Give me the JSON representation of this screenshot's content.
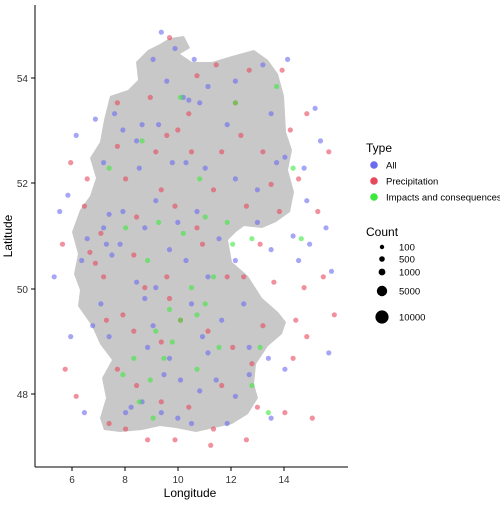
{
  "chart_data": {
    "type": "scatter",
    "title": "",
    "xlabel": "Longitude",
    "ylabel": "Latitude",
    "xlim": [
      4.3,
      15.7
    ],
    "ylim": [
      46.8,
      55.3
    ],
    "x_ticks": [
      "6",
      "8",
      "10",
      "12",
      "14"
    ],
    "y_ticks": [
      "48",
      "50",
      "52",
      "54"
    ],
    "grid": false,
    "background_map": "Germany outline (grey)",
    "map_fill": "#c8c8c8",
    "legend_placement": "right",
    "legend_type": {
      "title": "Type",
      "entries": [
        {
          "label": "All",
          "color": "#6b6bf0"
        },
        {
          "label": "Precipitation",
          "color": "#e8485c"
        },
        {
          "label": "Impacts and consequences",
          "color": "#3de83d"
        }
      ]
    },
    "legend_size": {
      "title": "Count",
      "entries": [
        {
          "label": "100",
          "value": 100
        },
        {
          "label": "500",
          "value": 500
        },
        {
          "label": "1000",
          "value": 1000
        },
        {
          "label": "5000",
          "value": 5000
        },
        {
          "label": "10000",
          "value": 10000
        }
      ]
    },
    "series": [
      {
        "name": "All",
        "color": "#6b6bf0",
        "points": [
          [
            8.9,
            54.8
          ],
          [
            9.4,
            54.5
          ],
          [
            8.6,
            54.3
          ],
          [
            10.1,
            54.3
          ],
          [
            9.1,
            53.9
          ],
          [
            10.6,
            53.8
          ],
          [
            9.9,
            53.55
          ],
          [
            10.3,
            53.5
          ],
          [
            8.8,
            53.1
          ],
          [
            9.7,
            53.6
          ],
          [
            8.2,
            53.1
          ],
          [
            7.2,
            53.3
          ],
          [
            7.5,
            53.0
          ],
          [
            8.0,
            52.8
          ],
          [
            9.3,
            52.4
          ],
          [
            9.8,
            52.4
          ],
          [
            10.5,
            52.3
          ],
          [
            11.6,
            52.1
          ],
          [
            12.4,
            51.9
          ],
          [
            13.4,
            52.5
          ],
          [
            13.1,
            52.4
          ],
          [
            14.1,
            52.3
          ],
          [
            13.7,
            51.05
          ],
          [
            12.4,
            51.3
          ],
          [
            11.0,
            51.0
          ],
          [
            10.2,
            51.5
          ],
          [
            9.5,
            51.3
          ],
          [
            8.7,
            51.7
          ],
          [
            7.5,
            51.5
          ],
          [
            7.0,
            51.45
          ],
          [
            6.8,
            51.2
          ],
          [
            6.2,
            51.0
          ],
          [
            6.9,
            50.9
          ],
          [
            7.1,
            50.7
          ],
          [
            8.0,
            50.2
          ],
          [
            8.7,
            50.1
          ],
          [
            8.3,
            49.9
          ],
          [
            8.6,
            49.4
          ],
          [
            8.4,
            49.0
          ],
          [
            9.2,
            48.8
          ],
          [
            9.0,
            48.5
          ],
          [
            8.2,
            48.0
          ],
          [
            7.8,
            47.9
          ],
          [
            9.5,
            47.7
          ],
          [
            10.0,
            47.6
          ],
          [
            10.9,
            48.4
          ],
          [
            11.6,
            48.1
          ],
          [
            12.1,
            48.5
          ],
          [
            12.8,
            48.8
          ],
          [
            13.4,
            48.6
          ],
          [
            11.1,
            49.5
          ],
          [
            11.9,
            49.8
          ],
          [
            10.0,
            49.8
          ],
          [
            12.1,
            49.0
          ],
          [
            6.4,
            49.4
          ],
          [
            7.0,
            49.2
          ],
          [
            6.7,
            49.8
          ],
          [
            5.2,
            51.5
          ],
          [
            5.5,
            51.8
          ],
          [
            5.8,
            52.9
          ],
          [
            6.5,
            53.2
          ],
          [
            14.3,
            50.9
          ],
          [
            14.9,
            51.2
          ],
          [
            13.5,
            54.3
          ],
          [
            12.6,
            54.2
          ],
          [
            11.6,
            53.9
          ],
          [
            14.5,
            53.4
          ],
          [
            6.8,
            52.4
          ],
          [
            8.3,
            51.2
          ],
          [
            9.8,
            50.6
          ],
          [
            10.6,
            50.3
          ],
          [
            11.6,
            50.6
          ],
          [
            12.9,
            50.8
          ],
          [
            13.9,
            50.6
          ],
          [
            12.9,
            53.3
          ],
          [
            11.3,
            53.1
          ],
          [
            8.1,
            52.3
          ],
          [
            9.2,
            50.8
          ],
          [
            10.4,
            49.2
          ],
          [
            10.6,
            48.9
          ],
          [
            7.6,
            47.8
          ],
          [
            8.9,
            47.8
          ],
          [
            11.3,
            47.6
          ],
          [
            12.9,
            47.7
          ],
          [
            7.4,
            50.9
          ],
          [
            6.0,
            50.6
          ],
          [
            9.6,
            48.4
          ],
          [
            10.3,
            48.2
          ],
          [
            14.7,
            52.8
          ],
          [
            14.2,
            51.7
          ],
          [
            5.0,
            50.3
          ],
          [
            6.1,
            47.8
          ],
          [
            15.0,
            48.9
          ],
          [
            15.1,
            50.4
          ],
          [
            5.6,
            49.2
          ]
        ]
      },
      {
        "name": "Precipitation",
        "color": "#e8485c",
        "points": [
          [
            9.2,
            54.7
          ],
          [
            10.2,
            54.0
          ],
          [
            12.1,
            54.1
          ],
          [
            13.3,
            54.1
          ],
          [
            8.5,
            53.6
          ],
          [
            9.9,
            53.3
          ],
          [
            11.6,
            53.5
          ],
          [
            14.2,
            53.3
          ],
          [
            7.3,
            52.7
          ],
          [
            8.7,
            52.6
          ],
          [
            10.0,
            52.6
          ],
          [
            11.1,
            52.6
          ],
          [
            12.6,
            52.6
          ],
          [
            13.9,
            52.1
          ],
          [
            7.6,
            52.1
          ],
          [
            8.9,
            51.9
          ],
          [
            10.8,
            51.9
          ],
          [
            12.0,
            51.6
          ],
          [
            13.2,
            51.5
          ],
          [
            14.6,
            51.5
          ],
          [
            6.7,
            51.1
          ],
          [
            6.3,
            50.75
          ],
          [
            6.5,
            50.55
          ],
          [
            7.9,
            50.7
          ],
          [
            9.1,
            50.3
          ],
          [
            10.4,
            50.9
          ],
          [
            11.9,
            50.3
          ],
          [
            13.0,
            50.2
          ],
          [
            14.1,
            50.1
          ],
          [
            7.5,
            49.6
          ],
          [
            8.9,
            49.1
          ],
          [
            10.6,
            49.3
          ],
          [
            12.6,
            49.4
          ],
          [
            13.7,
            48.8
          ],
          [
            11.1,
            48.3
          ],
          [
            12.4,
            47.9
          ],
          [
            9.9,
            47.9
          ],
          [
            8.0,
            48.3
          ],
          [
            7.3,
            48.6
          ],
          [
            7.6,
            47.5
          ],
          [
            8.4,
            47.3
          ],
          [
            9.4,
            47.3
          ],
          [
            10.8,
            47.5
          ],
          [
            12.0,
            47.3
          ],
          [
            5.8,
            48.1
          ],
          [
            5.4,
            48.6
          ],
          [
            6.2,
            52.1
          ],
          [
            5.3,
            50.9
          ],
          [
            15.0,
            52.6
          ],
          [
            14.8,
            50.3
          ],
          [
            9.5,
            53.0
          ],
          [
            10.9,
            54.2
          ],
          [
            12.9,
            52.0
          ],
          [
            8.3,
            50.1
          ],
          [
            9.6,
            49.5
          ],
          [
            11.5,
            49.0
          ],
          [
            13.4,
            47.8
          ],
          [
            6.9,
            49.5
          ],
          [
            8.9,
            48.0
          ],
          [
            7.9,
            49.3
          ],
          [
            10.2,
            51.2
          ],
          [
            11.3,
            50.3
          ],
          [
            12.2,
            48.7
          ],
          [
            14.2,
            49.2
          ],
          [
            6.1,
            51.6
          ],
          [
            7.3,
            53.5
          ],
          [
            9.4,
            51.6
          ],
          [
            11.8,
            52.9
          ],
          [
            13.6,
            53.0
          ],
          [
            8.0,
            51.4
          ],
          [
            14.4,
            47.7
          ],
          [
            6.8,
            50.3
          ],
          [
            9.1,
            52.9
          ],
          [
            10.7,
            47.2
          ],
          [
            15.2,
            49.6
          ],
          [
            5.6,
            52.4
          ],
          [
            7.0,
            47.6
          ],
          [
            12.5,
            50.9
          ],
          [
            13.8,
            49.5
          ],
          [
            9.2,
            49.9
          ]
        ]
      },
      {
        "name": "Impacts and consequences",
        "color": "#3de83d",
        "points": [
          [
            9.6,
            49.5
          ],
          [
            9.3,
            49.1
          ],
          [
            10.2,
            49.6
          ],
          [
            9.0,
            48.8
          ],
          [
            8.5,
            48.4
          ],
          [
            8.1,
            48.0
          ],
          [
            8.6,
            47.7
          ],
          [
            10.0,
            50.1
          ],
          [
            10.8,
            50.3
          ],
          [
            11.5,
            50.9
          ],
          [
            11.3,
            51.3
          ],
          [
            12.2,
            51.0
          ],
          [
            10.5,
            51.4
          ],
          [
            9.7,
            51.1
          ],
          [
            8.8,
            51.3
          ],
          [
            7.6,
            51.2
          ],
          [
            9.6,
            53.6
          ],
          [
            8.2,
            52.8
          ],
          [
            7.5,
            48.5
          ],
          [
            8.7,
            49.3
          ],
          [
            9.2,
            49.7
          ],
          [
            10.5,
            49.8
          ],
          [
            12.5,
            49.0
          ],
          [
            12.2,
            48.3
          ],
          [
            10.2,
            48.6
          ],
          [
            11.0,
            49.0
          ],
          [
            7.0,
            52.3
          ],
          [
            13.1,
            53.8
          ],
          [
            11.6,
            53.5
          ],
          [
            14.0,
            51.0
          ],
          [
            10.3,
            52.1
          ],
          [
            13.7,
            52.3
          ],
          [
            8.4,
            50.6
          ],
          [
            7.9,
            48.8
          ],
          [
            12.8,
            47.8
          ]
        ]
      }
    ]
  }
}
